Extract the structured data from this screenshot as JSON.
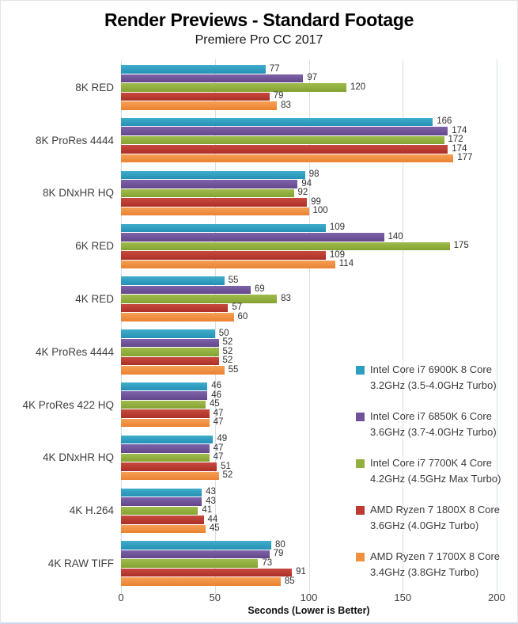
{
  "chart_data": {
    "type": "bar",
    "orientation": "horizontal",
    "title": "Render Previews - Standard Footage",
    "subtitle": "Premiere Pro CC 2017",
    "xlabel": "Seconds (Lower is Better)",
    "xlim": [
      0,
      200
    ],
    "xticks": [
      0,
      50,
      100,
      150,
      200
    ],
    "grid": true,
    "legend_position": "inside-right",
    "categories": [
      "8K RED",
      "8K ProRes 4444",
      "8K DNxHR HQ",
      "6K RED",
      "4K RED",
      "4K ProRes 4444",
      "4K ProRes 422 HQ",
      "4K DNxHR HQ",
      "4K H.264",
      "4K RAW TIFF"
    ],
    "series": [
      {
        "name": "Intel Core i7 6900K 8 Core 3.2GHz (3.5-4.0GHz Turbo)",
        "name_lines": [
          "Intel Core i7 6900K 8 Core",
          "3.2GHz (3.5-4.0GHz Turbo)"
        ],
        "color": "#2C9FC1",
        "color_light": "#3FADCC",
        "color_dark": "#2590B4",
        "values": [
          77,
          166,
          98,
          109,
          55,
          50,
          46,
          49,
          43,
          80
        ]
      },
      {
        "name": "Intel Core i7 6850K 6 Core 3.6GHz (3.7-4.0GHz Turbo)",
        "name_lines": [
          "Intel Core i7 6850K 6 Core",
          "3.6GHz (3.7-4.0GHz Turbo)"
        ],
        "color": "#6F5299",
        "color_light": "#7E63AB",
        "color_dark": "#644789",
        "values": [
          97,
          174,
          94,
          140,
          69,
          52,
          46,
          47,
          43,
          79
        ]
      },
      {
        "name": "Intel Core i7 7700K 4 Core 4.2GHz (4.5GHz Max Turbo)",
        "name_lines": [
          "Intel Core i7 7700K 4 Core",
          "4.2GHz (4.5GHz Max Turbo)"
        ],
        "color": "#92B03C",
        "color_light": "#9FBC4C",
        "color_dark": "#84A232",
        "values": [
          120,
          172,
          92,
          175,
          83,
          52,
          45,
          47,
          41,
          73
        ]
      },
      {
        "name": "AMD Ryzen 7 1800X 8 Core 3.6GHz (4.0GHz Turbo)",
        "name_lines": [
          "AMD Ryzen 7 1800X 8 Core",
          "3.6GHz (4.0GHz Turbo)"
        ],
        "color": "#BC3A31",
        "color_light": "#C84A3E",
        "color_dark": "#AC2F27",
        "values": [
          79,
          174,
          99,
          109,
          57,
          52,
          47,
          51,
          44,
          91
        ]
      },
      {
        "name": "AMD Ryzen 7 1700X 8 Core 3.4GHz (3.8GHz Turbo)",
        "name_lines": [
          "AMD Ryzen 7 1700X 8 Core",
          "3.4GHz (3.8GHz Turbo)"
        ],
        "color": "#F0913F",
        "color_light": "#F5A055",
        "color_dark": "#EB8132",
        "values": [
          83,
          177,
          100,
          114,
          60,
          55,
          47,
          52,
          45,
          85
        ]
      }
    ]
  }
}
